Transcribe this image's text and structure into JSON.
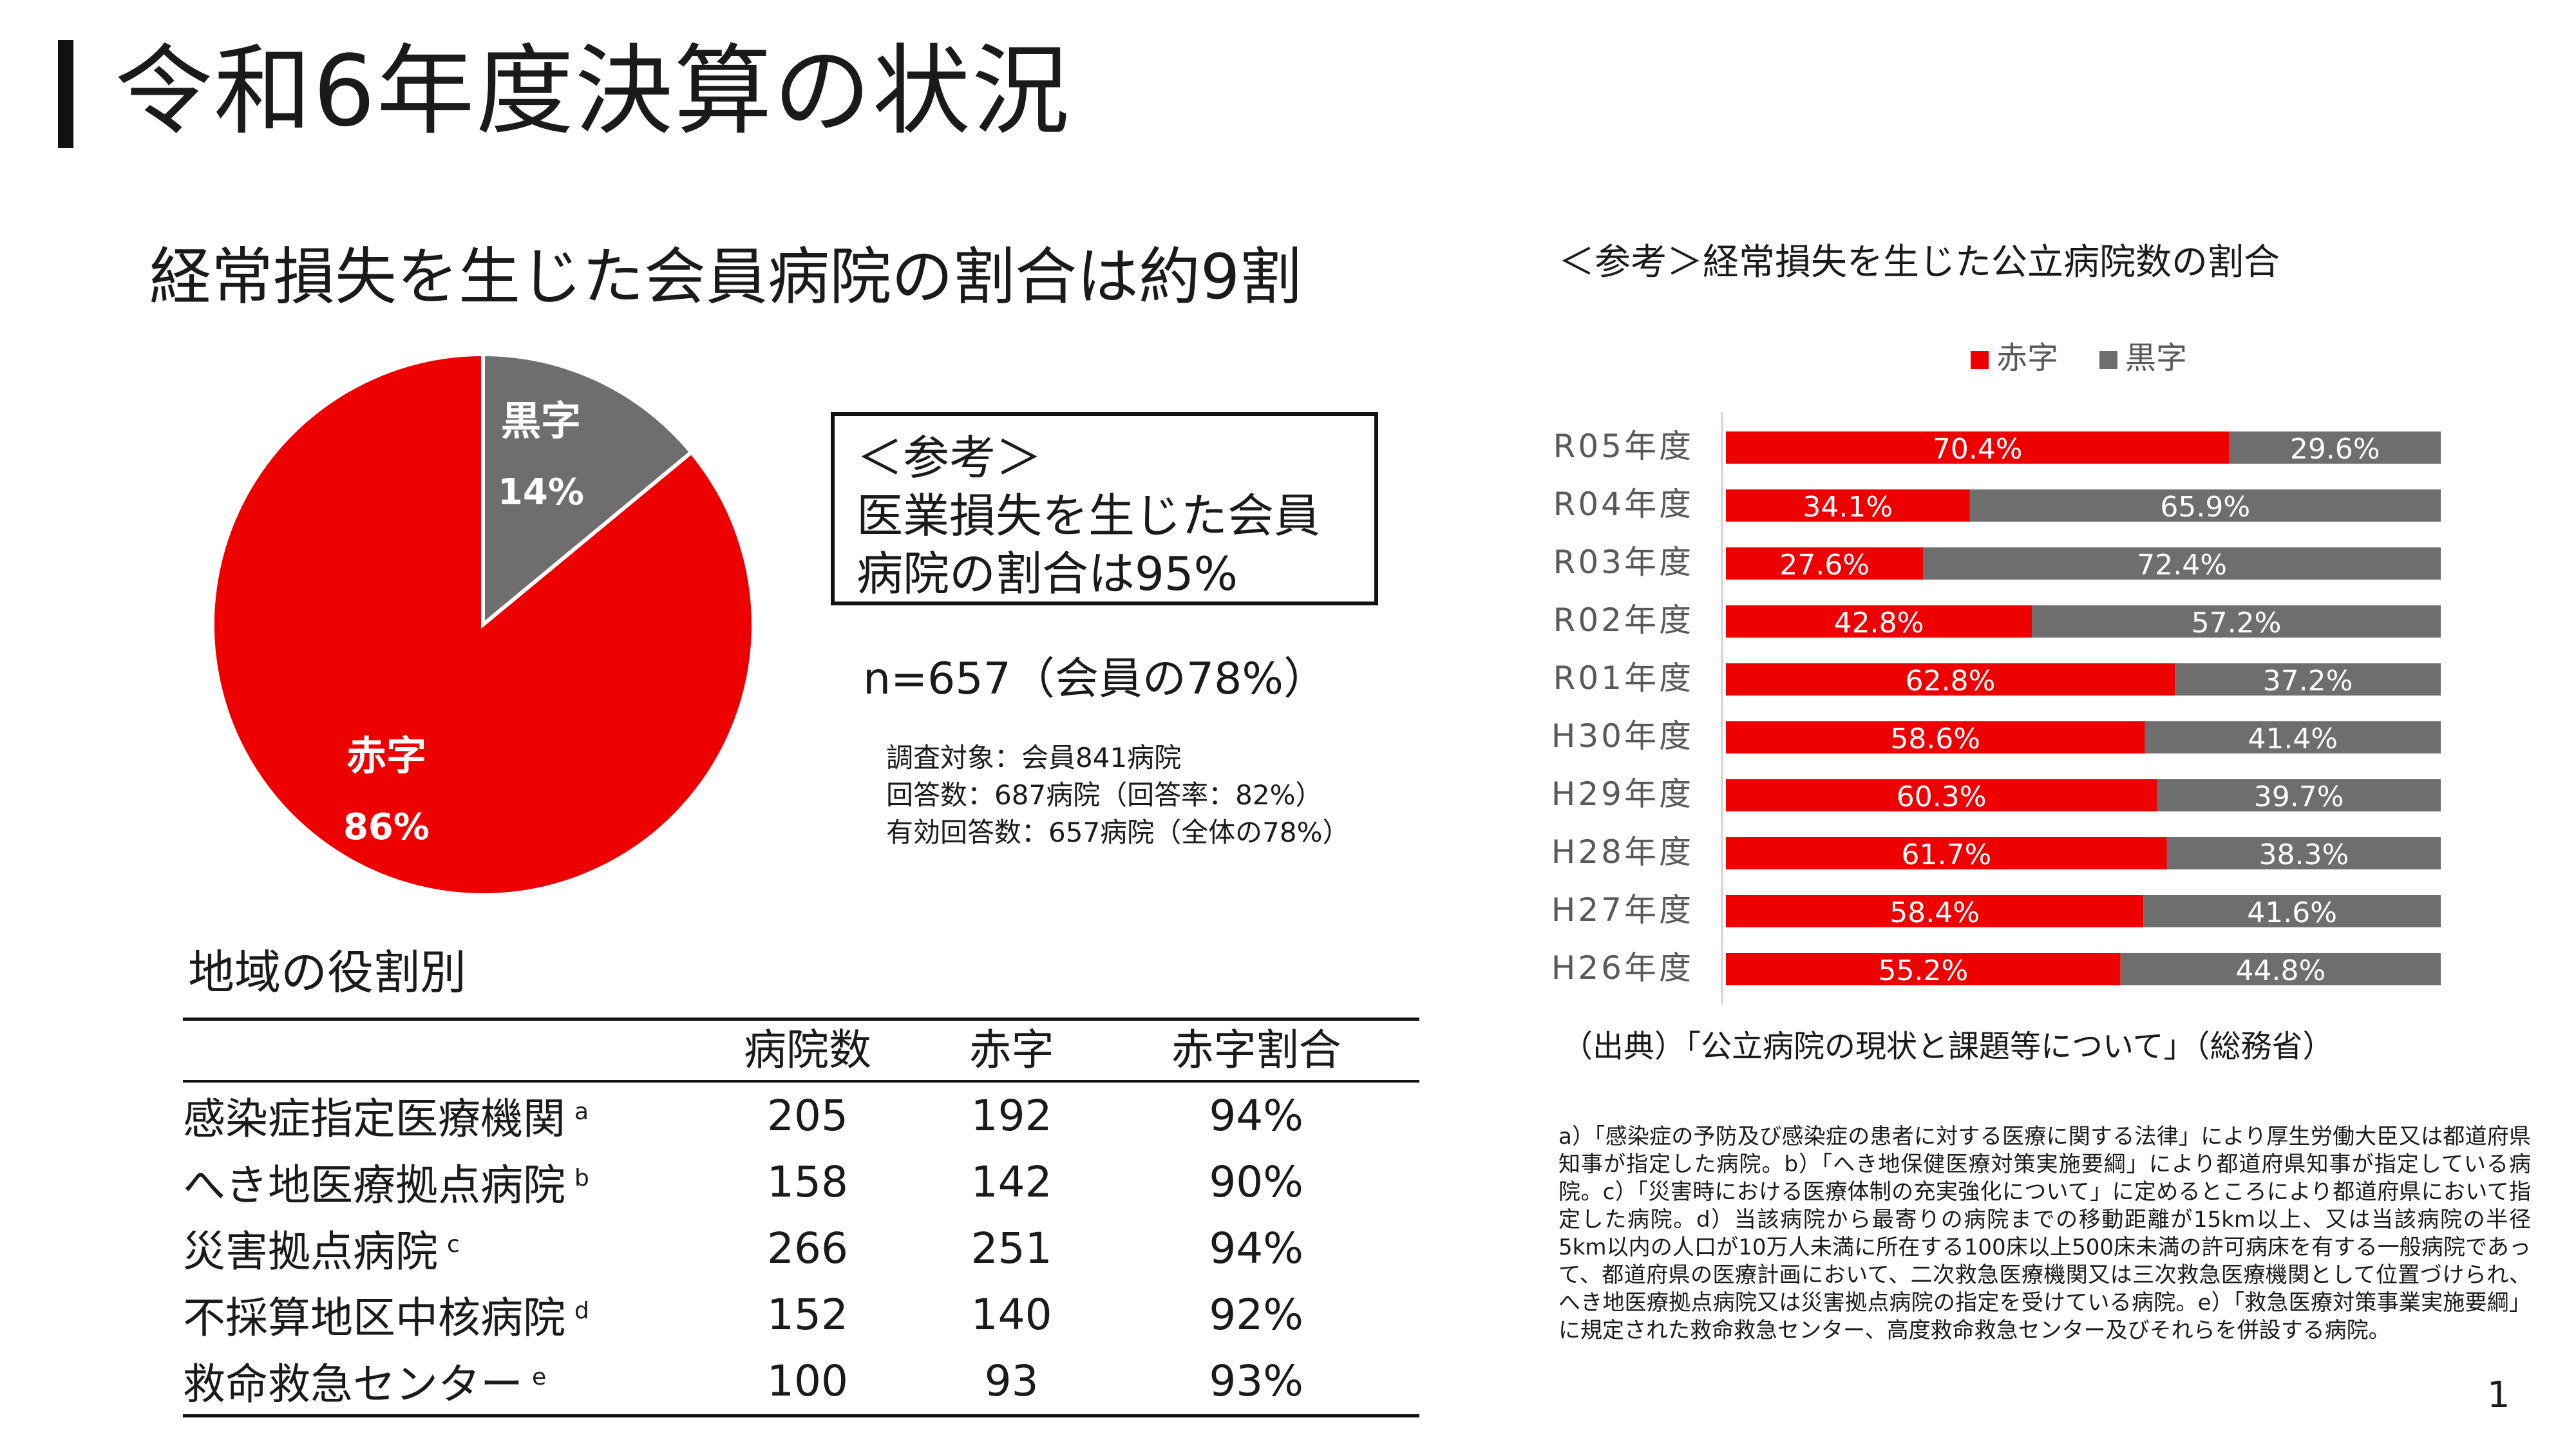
{
  "title": "令和6年度決算の状況",
  "pie_heading": "経常損失を生じた会員病院の割合は約9割",
  "reference_box": {
    "lines": [
      "＜参考＞",
      "医業損失を生じた会員",
      "病院の割合は95%"
    ]
  },
  "sample_note": "n=657（会員の78%）",
  "survey_lines": [
    "調査対象：会員841病院",
    "回答数：687病院（回答率：82%）",
    "有効回答数：657病院（全体の78%）"
  ],
  "region_heading": "地域の役割別",
  "region_table": {
    "headers": [
      "",
      "病院数",
      "赤字",
      "赤字割合"
    ],
    "rows": [
      {
        "name": "感染症指定医療機関",
        "mark": "a",
        "count": "205",
        "deficit": "192",
        "ratio": "94%"
      },
      {
        "name": "へき地医療拠点病院",
        "mark": "b",
        "count": "158",
        "deficit": "142",
        "ratio": "90%"
      },
      {
        "name": "災害拠点病院",
        "mark": "c",
        "count": "266",
        "deficit": "251",
        "ratio": "94%"
      },
      {
        "name": "不採算地区中核病院",
        "mark": "d",
        "count": "152",
        "deficit": "140",
        "ratio": "92%"
      },
      {
        "name": "救命救急センター",
        "mark": "e",
        "count": "100",
        "deficit": "93",
        "ratio": "93%"
      }
    ]
  },
  "reference_chart_heading": "＜参考＞経常損失を生じた公立病院数の割合",
  "source_note": "（出典）「公立病院の現状と課題等について」（総務省）",
  "footnote": "a）「感染症の予防及び感染症の患者に対する医療に関する法律」により厚生労働大臣又は都道府県知事が指定した病院。b）「へき地保健医療対策実施要綱」により都道府県知事が指定している病院。c）「災害時における医療体制の充実強化について」に定めるところにより都道府県において指定した病院。d）当該病院から最寄りの病院までの移動距離が15km以上、又は当該病院の半径5km以内の人口が10万人未満に所在する100床以上500床未満の許可病床を有する一般病院であって、都道府県の医療計画において、二次救急医療機関又は三次救急医療機関として位置づけられ、へき地医療拠点病院又は災害拠点病院の指定を受けている病院。e）「救急医療対策事業実施要綱」に規定された救命救急センター、高度救命救急センター及びそれらを併設する病院。",
  "page_number": "1",
  "colors": {
    "deficit": "#ee0000",
    "surplus": "#6e6e6e"
  },
  "chart_data": [
    {
      "type": "pie",
      "title": "経常損失を生じた会員病院の割合は約9割",
      "slices": [
        {
          "label": "赤字",
          "value": 86,
          "value_label": "86%",
          "color": "#ee0000"
        },
        {
          "label": "黒字",
          "value": 14,
          "value_label": "14%",
          "color": "#6e6e6e"
        }
      ]
    },
    {
      "type": "bar",
      "orientation": "horizontal",
      "stacked": true,
      "title": "＜参考＞経常損失を生じた公立病院数の割合",
      "legend_position": "top",
      "categories": [
        "R05年度",
        "R04年度",
        "R03年度",
        "R02年度",
        "R01年度",
        "H30年度",
        "H29年度",
        "H28年度",
        "H27年度",
        "H26年度"
      ],
      "series": [
        {
          "name": "赤字",
          "color": "#ee0000",
          "values": [
            70.4,
            34.1,
            27.6,
            42.8,
            62.8,
            58.6,
            60.3,
            61.7,
            58.4,
            55.2
          ]
        },
        {
          "name": "黒字",
          "color": "#6e6e6e",
          "values": [
            29.6,
            65.9,
            72.4,
            57.2,
            37.2,
            41.4,
            39.7,
            38.3,
            41.6,
            44.8
          ]
        }
      ],
      "value_format": "percent_1dp",
      "xlim": [
        0,
        100
      ]
    }
  ]
}
